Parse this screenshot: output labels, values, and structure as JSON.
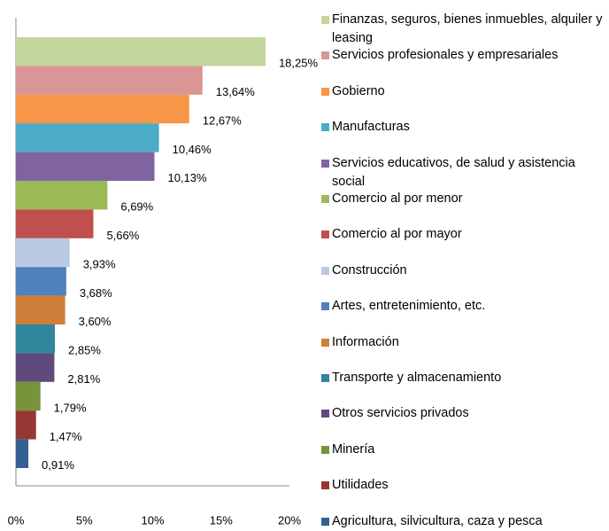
{
  "chart_data": {
    "type": "bar",
    "orientation": "horizontal",
    "categories": [
      "Finanzas, seguros, bienes inmuebles, alquiler y leasing",
      "Servicios profesionales y empresariales",
      "Gobierno",
      "Manufacturas",
      "Servicios educativos, de salud y asistencia social",
      "Comercio al por menor",
      "Comercio al por mayor",
      "Construcción",
      "Artes, entretenimiento, etc.",
      "Información",
      "Transporte y almacenamiento",
      "Otros servicios privados",
      "Minería",
      "Utilidades",
      "Agricultura, silvicultura,  caza y pesca"
    ],
    "values": [
      18.25,
      13.64,
      12.67,
      10.46,
      10.13,
      6.69,
      5.66,
      3.93,
      3.68,
      3.6,
      2.85,
      2.81,
      1.79,
      1.47,
      0.91
    ],
    "value_labels": [
      "18,25%",
      "13,64%",
      "12,67%",
      "10,46%",
      "10,13%",
      "6,69%",
      "5,66%",
      "3,93%",
      "3,68%",
      "3,60%",
      "2,85%",
      "2,81%",
      "1,79%",
      "1,47%",
      "0,91%"
    ],
    "colors": [
      "#c3d69b",
      "#d99694",
      "#f79646",
      "#4bacc6",
      "#8064a2",
      "#9bbb59",
      "#c0504d",
      "#b9c9e3",
      "#4f81bd",
      "#d07f3a",
      "#31859c",
      "#604a7b",
      "#77933c",
      "#953735",
      "#366092"
    ],
    "xlim": [
      0,
      20
    ],
    "xticks": [
      {
        "value": 0,
        "label": "0%"
      },
      {
        "value": 5,
        "label": "5%"
      },
      {
        "value": 10,
        "label": "10%"
      },
      {
        "value": 15,
        "label": "15%"
      },
      {
        "value": 20,
        "label": "20%"
      }
    ],
    "legend": "right"
  }
}
